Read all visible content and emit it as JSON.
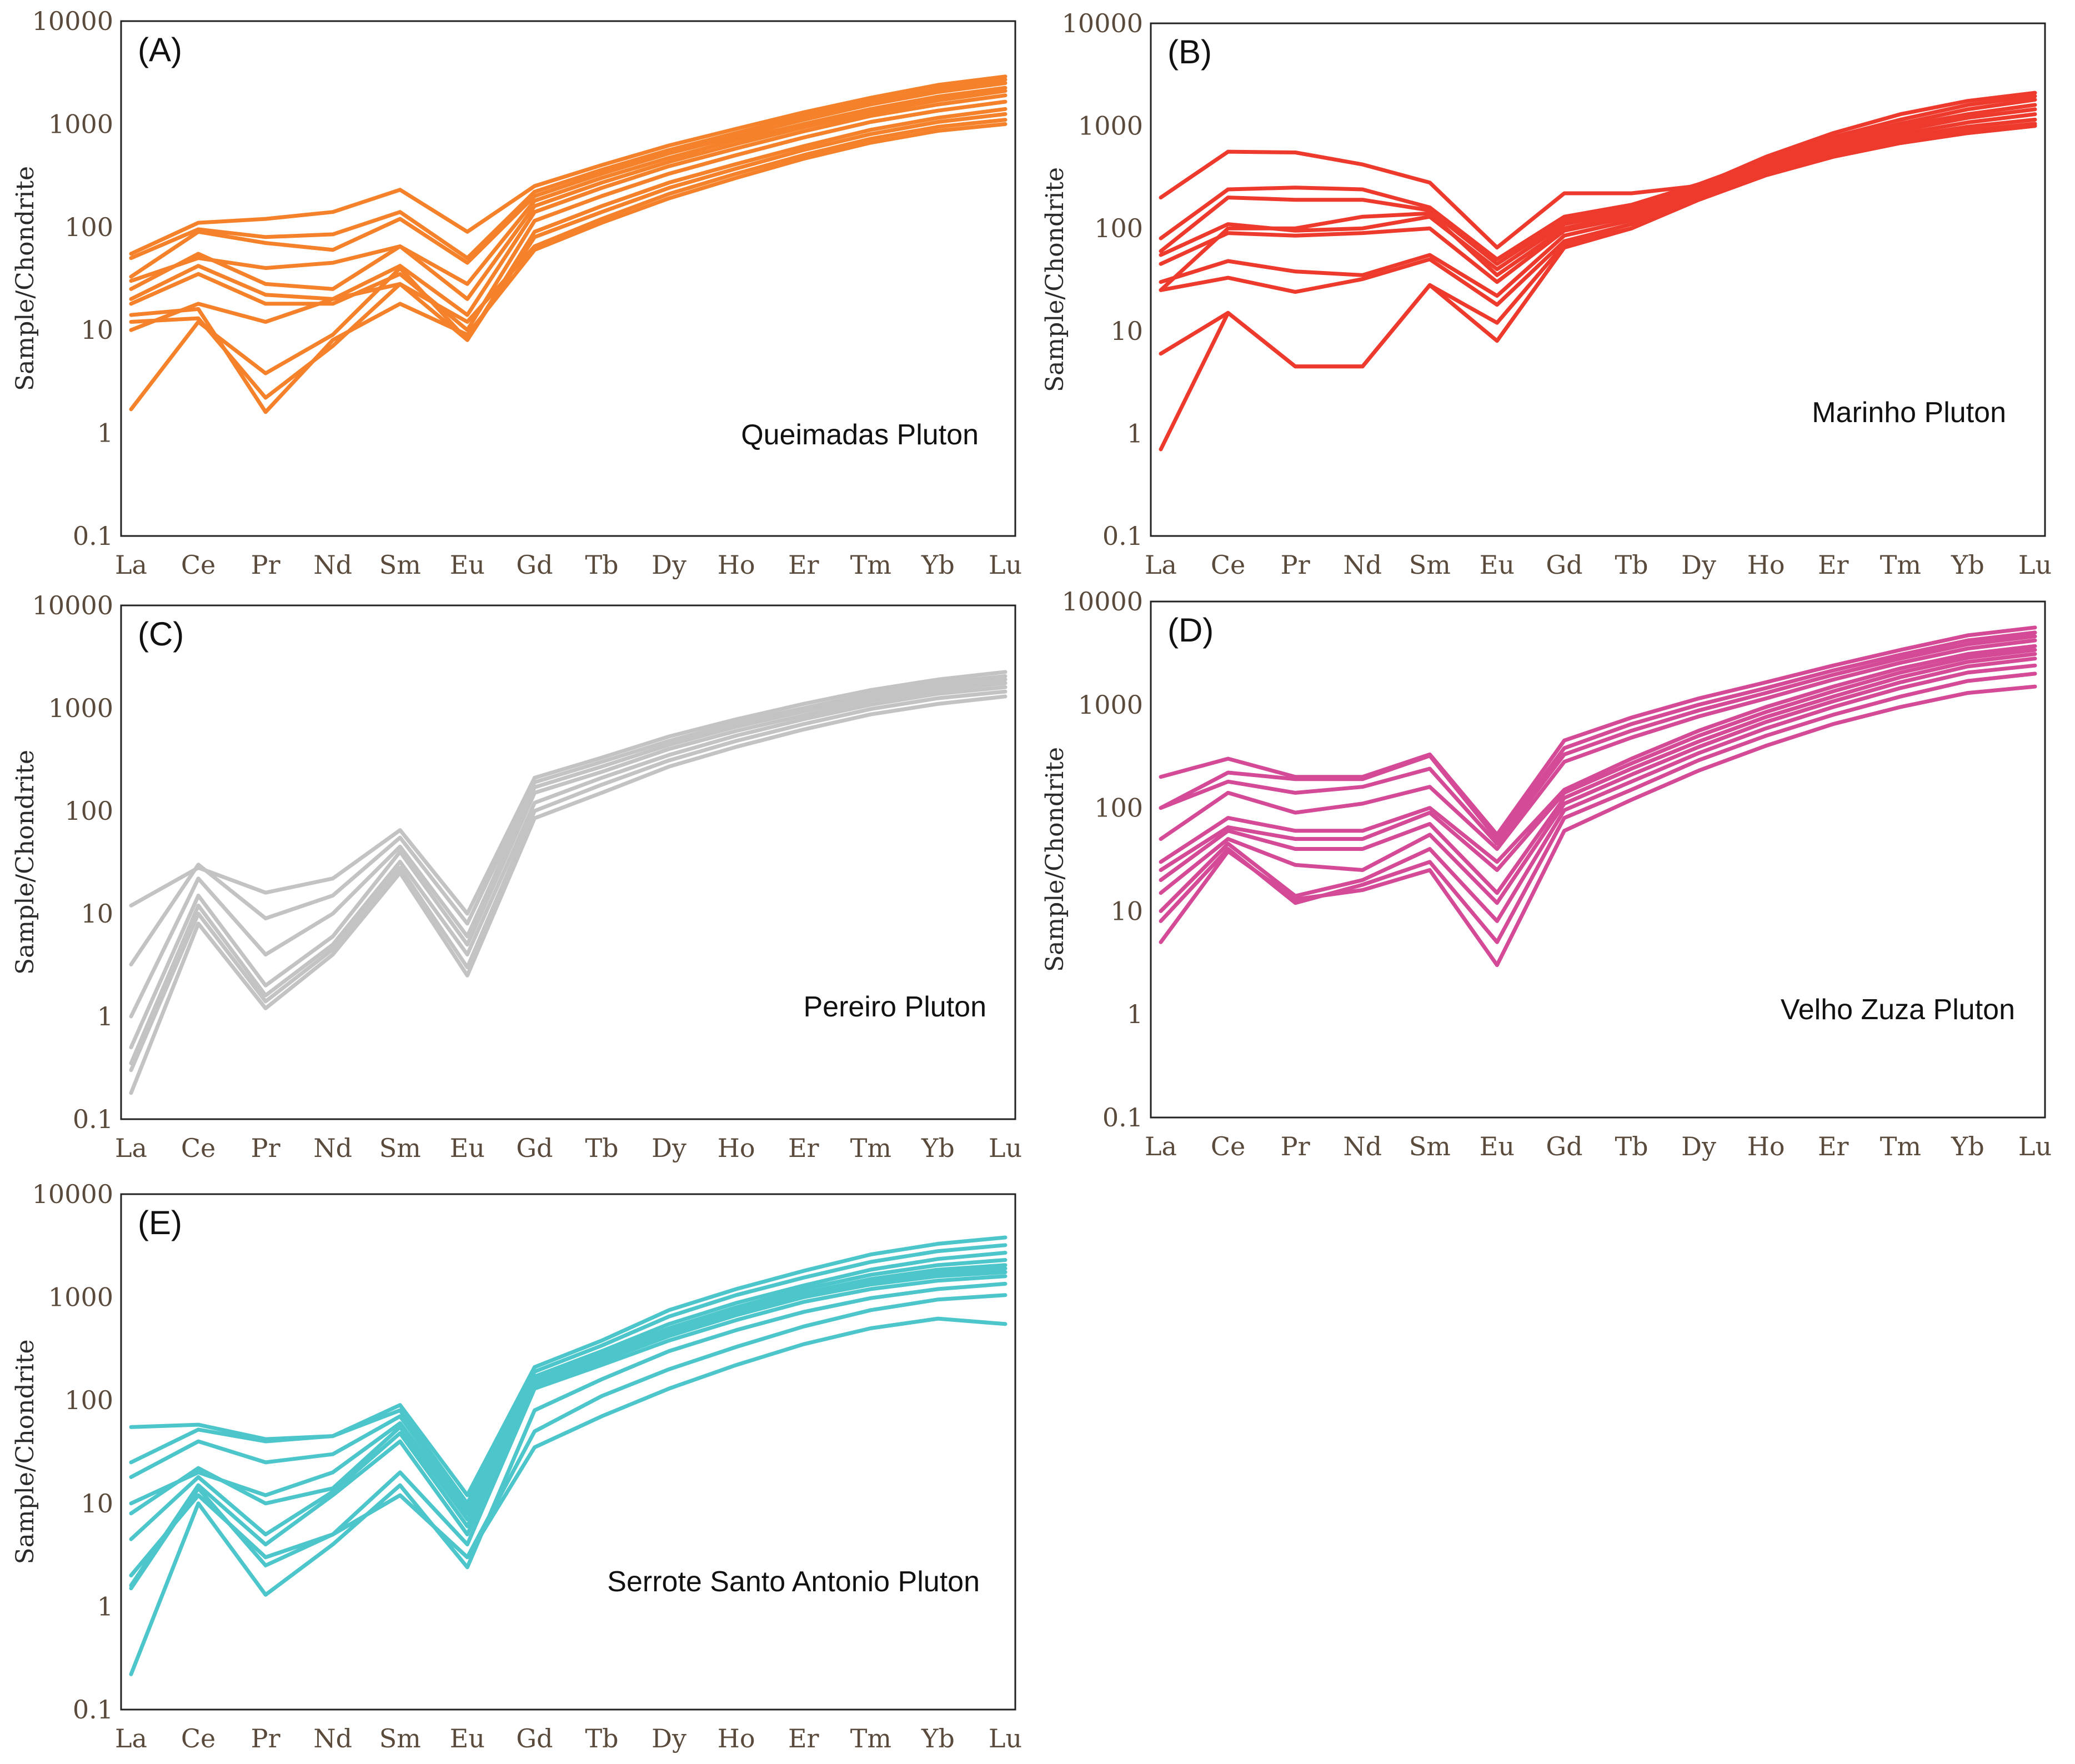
{
  "elements": [
    "La",
    "Ce",
    "Pr",
    "Nd",
    "Sm",
    "Eu",
    "Gd",
    "Tb",
    "Dy",
    "Ho",
    "Er",
    "Tm",
    "Yb",
    "Lu"
  ],
  "chart_data": [
    {
      "type": "line",
      "id": "A",
      "panel_label": "(A)",
      "title": "Queimadas Pluton",
      "ylabel": "Sample/Chondrite",
      "yscale": "log",
      "ylim": [
        0.1,
        10000
      ],
      "ytick_labels": [
        "0.1",
        "1",
        "10",
        "100",
        "1000",
        "10000"
      ],
      "color": "#f5822a",
      "series": [
        {
          "values": [
            55,
            110,
            120,
            140,
            230,
            90,
            250,
            400,
            620,
            900,
            1300,
            1800,
            2400,
            2900
          ]
        },
        {
          "values": [
            50,
            95,
            80,
            85,
            140,
            50,
            220,
            360,
            560,
            820,
            1200,
            1650,
            2200,
            2700
          ]
        },
        {
          "values": [
            33,
            90,
            70,
            60,
            120,
            45,
            200,
            330,
            520,
            760,
            1100,
            1550,
            2050,
            2500
          ]
        },
        {
          "values": [
            30,
            50,
            40,
            45,
            65,
            28,
            180,
            300,
            470,
            700,
            1000,
            1400,
            1850,
            2250
          ]
        },
        {
          "values": [
            25,
            55,
            28,
            25,
            65,
            20,
            160,
            270,
            430,
            640,
            930,
            1300,
            1700,
            2100
          ]
        },
        {
          "values": [
            20,
            42,
            22,
            20,
            42,
            14,
            140,
            240,
            390,
            580,
            850,
            1200,
            1550,
            1900
          ]
        },
        {
          "values": [
            18,
            35,
            18,
            18,
            35,
            10,
            115,
            200,
            330,
            500,
            740,
            1050,
            1350,
            1650
          ]
        },
        {
          "values": [
            10,
            18,
            12,
            20,
            28,
            8,
            90,
            160,
            270,
            410,
            610,
            880,
            1150,
            1400
          ]
        },
        {
          "values": [
            1.7,
            12,
            3.8,
            9,
            40,
            8,
            80,
            140,
            240,
            370,
            560,
            800,
            1050,
            1250
          ]
        },
        {
          "values": [
            12,
            13,
            2.2,
            7,
            28,
            12,
            65,
            120,
            210,
            330,
            500,
            720,
            940,
            1100
          ]
        },
        {
          "values": [
            14,
            16,
            1.6,
            8,
            18,
            9,
            60,
            110,
            190,
            300,
            460,
            660,
            860,
            1000
          ]
        }
      ]
    },
    {
      "type": "line",
      "id": "B",
      "panel_label": "(B)",
      "title": "Marinho Pluton",
      "ylabel": "Sample/Chondrite",
      "yscale": "log",
      "ylim": [
        0.1,
        10000
      ],
      "ytick_labels": [
        "0.1",
        "1",
        "10",
        "100",
        "1000",
        "10000"
      ],
      "color": "#ee3a2c",
      "series": [
        {
          "values": [
            200,
            560,
            550,
            420,
            280,
            65,
            220,
            220,
            260,
            500,
            850,
            1300,
            1750,
            2100
          ]
        },
        {
          "values": [
            80,
            240,
            250,
            240,
            160,
            50,
            130,
            170,
            270,
            470,
            780,
            1150,
            1600,
            1950
          ]
        },
        {
          "values": [
            60,
            200,
            190,
            190,
            150,
            45,
            120,
            160,
            260,
            440,
            720,
            1050,
            1450,
            1800
          ]
        },
        {
          "values": [
            55,
            110,
            95,
            100,
            130,
            40,
            110,
            150,
            250,
            420,
            680,
            980,
            1300,
            1600
          ]
        },
        {
          "values": [
            25,
            100,
            100,
            130,
            140,
            35,
            100,
            140,
            240,
            400,
            640,
            900,
            1200,
            1450
          ]
        },
        {
          "values": [
            45,
            90,
            85,
            90,
            100,
            30,
            95,
            130,
            230,
            380,
            600,
            830,
            1080,
            1300
          ]
        },
        {
          "values": [
            30,
            48,
            38,
            35,
            55,
            22,
            85,
            120,
            210,
            360,
            560,
            770,
            980,
            1150
          ]
        },
        {
          "values": [
            25,
            33,
            24,
            32,
            50,
            18,
            75,
            110,
            200,
            340,
            530,
            720,
            900,
            1050
          ]
        },
        {
          "values": [
            6,
            15,
            4.5,
            4.5,
            28,
            12,
            70,
            100,
            190,
            330,
            500,
            680,
            850,
            1000
          ]
        },
        {
          "values": [
            0.7,
            15,
            4.5,
            4.5,
            28,
            8,
            65,
            100,
            190,
            330,
            500,
            680,
            850,
            1000
          ]
        }
      ]
    },
    {
      "type": "line",
      "id": "C",
      "panel_label": "(C)",
      "title": "Pereiro Pluton",
      "ylabel": "Sample/Chondrite",
      "yscale": "log",
      "ylim": [
        0.1,
        10000
      ],
      "ytick_labels": [
        "0.1",
        "1",
        "10",
        "100",
        "1000",
        "10000"
      ],
      "color": "#c3c3c3",
      "series": [
        {
          "values": [
            12,
            28,
            16,
            22,
            65,
            10,
            210,
            330,
            530,
            780,
            1100,
            1500,
            1900,
            2250
          ]
        },
        {
          "values": [
            3.2,
            30,
            9,
            15,
            55,
            8,
            190,
            300,
            480,
            720,
            1000,
            1380,
            1750,
            2050
          ]
        },
        {
          "values": [
            1,
            22,
            4,
            10,
            45,
            6,
            170,
            270,
            440,
            660,
            930,
            1280,
            1620,
            1900
          ]
        },
        {
          "values": [
            0.5,
            15,
            2,
            6,
            40,
            5,
            150,
            240,
            400,
            600,
            850,
            1180,
            1500,
            1750
          ]
        },
        {
          "values": [
            0.35,
            12,
            1.6,
            5,
            32,
            4,
            120,
            210,
            350,
            540,
            780,
            1080,
            1380,
            1600
          ]
        },
        {
          "values": [
            0.3,
            10,
            1.4,
            4.5,
            28,
            3,
            100,
            180,
            310,
            480,
            700,
            980,
            1250,
            1450
          ]
        },
        {
          "values": [
            0.18,
            8,
            1.2,
            4,
            25,
            2.5,
            85,
            150,
            270,
            420,
            620,
            870,
            1100,
            1300
          ]
        }
      ]
    },
    {
      "type": "line",
      "id": "D",
      "panel_label": "(D)",
      "title": "Velho Zuza Pluton",
      "ylabel": "Sample/Chondrite",
      "yscale": "log",
      "ylim": [
        0.1,
        10000
      ],
      "ytick_labels": [
        "0.1",
        "1",
        "10",
        "100",
        "1000",
        "10000"
      ],
      "color": "#d44a96",
      "series": [
        {
          "values": [
            200,
            300,
            200,
            200,
            330,
            55,
            450,
            750,
            1150,
            1650,
            2400,
            3400,
            4700,
            5600
          ]
        },
        {
          "values": [
            100,
            220,
            190,
            190,
            320,
            50,
            380,
            650,
            1000,
            1450,
            2150,
            3050,
            4200,
            5000
          ]
        },
        {
          "values": [
            100,
            180,
            140,
            160,
            240,
            45,
            330,
            560,
            880,
            1300,
            1950,
            2800,
            3850,
            4600
          ]
        },
        {
          "values": [
            50,
            140,
            90,
            110,
            160,
            40,
            280,
            480,
            770,
            1150,
            1750,
            2550,
            3500,
            4200
          ]
        },
        {
          "values": [
            30,
            80,
            60,
            60,
            100,
            30,
            150,
            300,
            560,
            950,
            1500,
            2250,
            3100,
            3700
          ]
        },
        {
          "values": [
            25,
            65,
            50,
            50,
            90,
            25,
            140,
            270,
            500,
            850,
            1350,
            2050,
            2850,
            3400
          ]
        },
        {
          "values": [
            20,
            60,
            40,
            40,
            70,
            15,
            125,
            240,
            440,
            760,
            1200,
            1850,
            2600,
            3100
          ]
        },
        {
          "values": [
            15,
            50,
            28,
            25,
            55,
            12,
            110,
            210,
            390,
            680,
            1080,
            1650,
            2350,
            2800
          ]
        },
        {
          "values": [
            10,
            45,
            14,
            20,
            40,
            8,
            95,
            180,
            340,
            590,
            950,
            1450,
            2050,
            2400
          ]
        },
        {
          "values": [
            8,
            40,
            12,
            18,
            30,
            5,
            80,
            150,
            290,
            500,
            800,
            1200,
            1700,
            2000
          ]
        },
        {
          "values": [
            5,
            38,
            13,
            16,
            25,
            3,
            60,
            120,
            230,
            400,
            650,
            950,
            1300,
            1500
          ]
        }
      ]
    },
    {
      "type": "line",
      "id": "E",
      "panel_label": "(E)",
      "title": "Serrote Santo Antonio Pluton",
      "ylabel": "Sample/Chondrite",
      "yscale": "log",
      "ylim": [
        0.1,
        10000
      ],
      "ytick_labels": [
        "0.1",
        "1",
        "10",
        "100",
        "1000",
        "10000"
      ],
      "color": "#4cc6cb",
      "series": [
        {
          "values": [
            55,
            58,
            42,
            45,
            90,
            12,
            210,
            380,
            750,
            1200,
            1800,
            2600,
            3300,
            3800
          ]
        },
        {
          "values": [
            25,
            52,
            40,
            45,
            80,
            10,
            190,
            340,
            650,
            1050,
            1550,
            2200,
            2800,
            3200
          ]
        },
        {
          "values": [
            18,
            40,
            25,
            30,
            70,
            9,
            170,
            300,
            550,
            880,
            1300,
            1850,
            2350,
            2700
          ]
        },
        {
          "values": [
            10,
            20,
            12,
            20,
            60,
            8,
            160,
            280,
            500,
            800,
            1200,
            1650,
            2050,
            2300
          ]
        },
        {
          "values": [
            8,
            22,
            10,
            14,
            55,
            7,
            150,
            260,
            470,
            750,
            1100,
            1500,
            1850,
            2050
          ]
        },
        {
          "values": [
            4.5,
            18,
            5,
            13,
            48,
            6,
            145,
            250,
            440,
            700,
            1050,
            1400,
            1700,
            1900
          ]
        },
        {
          "values": [
            1.6,
            15,
            4,
            12,
            40,
            5,
            140,
            240,
            420,
            670,
            1000,
            1330,
            1600,
            1750
          ]
        },
        {
          "values": [
            1.5,
            14,
            2.5,
            5,
            20,
            4,
            130,
            220,
            380,
            600,
            900,
            1200,
            1450,
            1600
          ]
        },
        {
          "values": [
            0.22,
            10,
            1.3,
            4,
            15,
            2.4,
            80,
            160,
            300,
            480,
            720,
            980,
            1200,
            1350
          ]
        },
        {
          "values": [
            2,
            12,
            3,
            5,
            12,
            3,
            50,
            110,
            200,
            330,
            520,
            750,
            950,
            1050
          ]
        },
        {
          "values": [
            2,
            12,
            3,
            5,
            12,
            3,
            35,
            70,
            130,
            220,
            350,
            500,
            620,
            550
          ]
        }
      ]
    }
  ]
}
